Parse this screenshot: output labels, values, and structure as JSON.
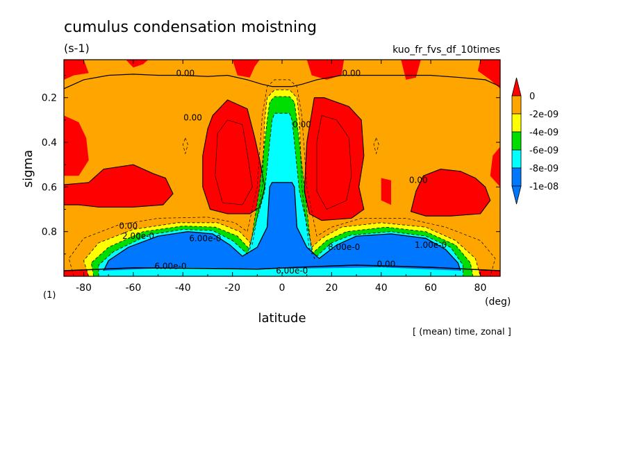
{
  "chart_data": {
    "type": "heatmap",
    "title": "cumulus condensation moistning",
    "units_label": "(s-1)",
    "run_label": "kuo_fr_fvs_df_10times",
    "xlabel": "latitude",
    "xunit": "(deg)",
    "ylabel": "sigma",
    "yunit": "(1)",
    "footer": "[ (mean) time, zonal ]",
    "xlim": [
      -88,
      88
    ],
    "ylim": [
      0.03,
      1.0
    ],
    "y_inverted": true,
    "x_ticks": [
      -80,
      -60,
      -40,
      -20,
      0,
      20,
      40,
      60,
      80
    ],
    "x_tick_labels": [
      "-80",
      "-60",
      "-40",
      "-20",
      "0",
      "20",
      "40",
      "60",
      "80"
    ],
    "y_ticks": [
      0.2,
      0.4,
      0.6,
      0.8
    ],
    "y_tick_labels": [
      "0.2",
      "0.4",
      "0.6",
      "0.8"
    ],
    "colorbar": {
      "labels": [
        "0",
        "-2e-09",
        "-4e-09",
        "-6e-09",
        "-8e-09",
        "-1e-08"
      ],
      "levels": [
        0,
        -2e-09,
        -4e-09,
        -6e-09,
        -8e-09,
        -1e-08
      ],
      "colors": [
        "#ff0000",
        "#ffa500",
        "#ffff00",
        "#00dd00",
        "#00ffff",
        "#0077ff",
        "#0077ff"
      ]
    },
    "colors": {
      "positive": "#ff0000",
      "band_0_to_m2": "#ffa500",
      "band_m2_to_m4": "#ffff00",
      "band_m4_to_m6": "#00dd00",
      "band_m6_to_m8": "#00ffff",
      "below_m8": "#0077ff"
    },
    "contour_labels": [
      {
        "text": "0.00",
        "lat": -62,
        "sigma": 0.775
      },
      {
        "text": "0.00",
        "lat": -39,
        "sigma": 0.09
      },
      {
        "text": "0.00",
        "lat": 28,
        "sigma": 0.09
      },
      {
        "text": "0.00",
        "lat": -36,
        "sigma": 0.29
      },
      {
        "text": "0.00",
        "lat": 55,
        "sigma": 0.57
      },
      {
        "text": "0.00",
        "lat": 42,
        "sigma": 0.945
      },
      {
        "text": "2.00e-0",
        "lat": -58,
        "sigma": 0.82
      },
      {
        "text": "6.00e-0",
        "lat": -31,
        "sigma": 0.83
      },
      {
        "text": "1.00e-0",
        "lat": 60,
        "sigma": 0.86
      },
      {
        "text": "8.00e-0",
        "lat": 25,
        "sigma": 0.87
      },
      {
        "text": "0.00",
        "lat": 8,
        "sigma": 0.32
      },
      {
        "text": "6.00e-0",
        "lat": -45,
        "sigma": 0.955
      },
      {
        "text": "6.00e-0",
        "lat": 4,
        "sigma": 0.975
      }
    ]
  }
}
